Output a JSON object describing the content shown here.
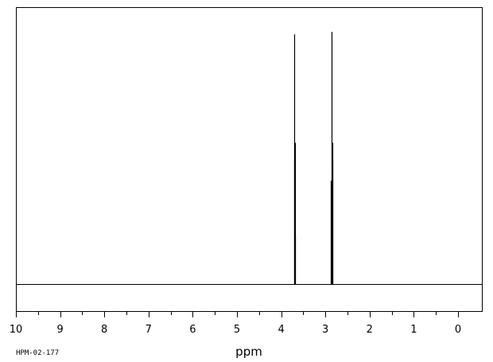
{
  "chart_data": {
    "type": "line",
    "title": "",
    "xlabel": "ppm",
    "ylabel": "",
    "xlim": [
      10,
      0
    ],
    "x_reversed": true,
    "ylim": [
      0,
      1
    ],
    "grid": false,
    "xticks": [
      10,
      9,
      8,
      7,
      6,
      5,
      4,
      3,
      2,
      1,
      0
    ],
    "xtick_labels": [
      "10",
      "9",
      "8",
      "7",
      "6",
      "5",
      "4",
      "3",
      "2",
      "1",
      "0"
    ],
    "peaks": [
      {
        "x": 3.71,
        "y": 0.49
      },
      {
        "x": 3.7,
        "y": 0.99
      },
      {
        "x": 3.69,
        "y": 0.56
      },
      {
        "x": 3.68,
        "y": 0.19
      },
      {
        "x": 2.87,
        "y": 0.41
      },
      {
        "x": 2.86,
        "y": 1.0
      },
      {
        "x": 2.85,
        "y": 0.56
      },
      {
        "x": 2.84,
        "y": 0.49
      }
    ],
    "annotation": "HPM-02-177"
  }
}
